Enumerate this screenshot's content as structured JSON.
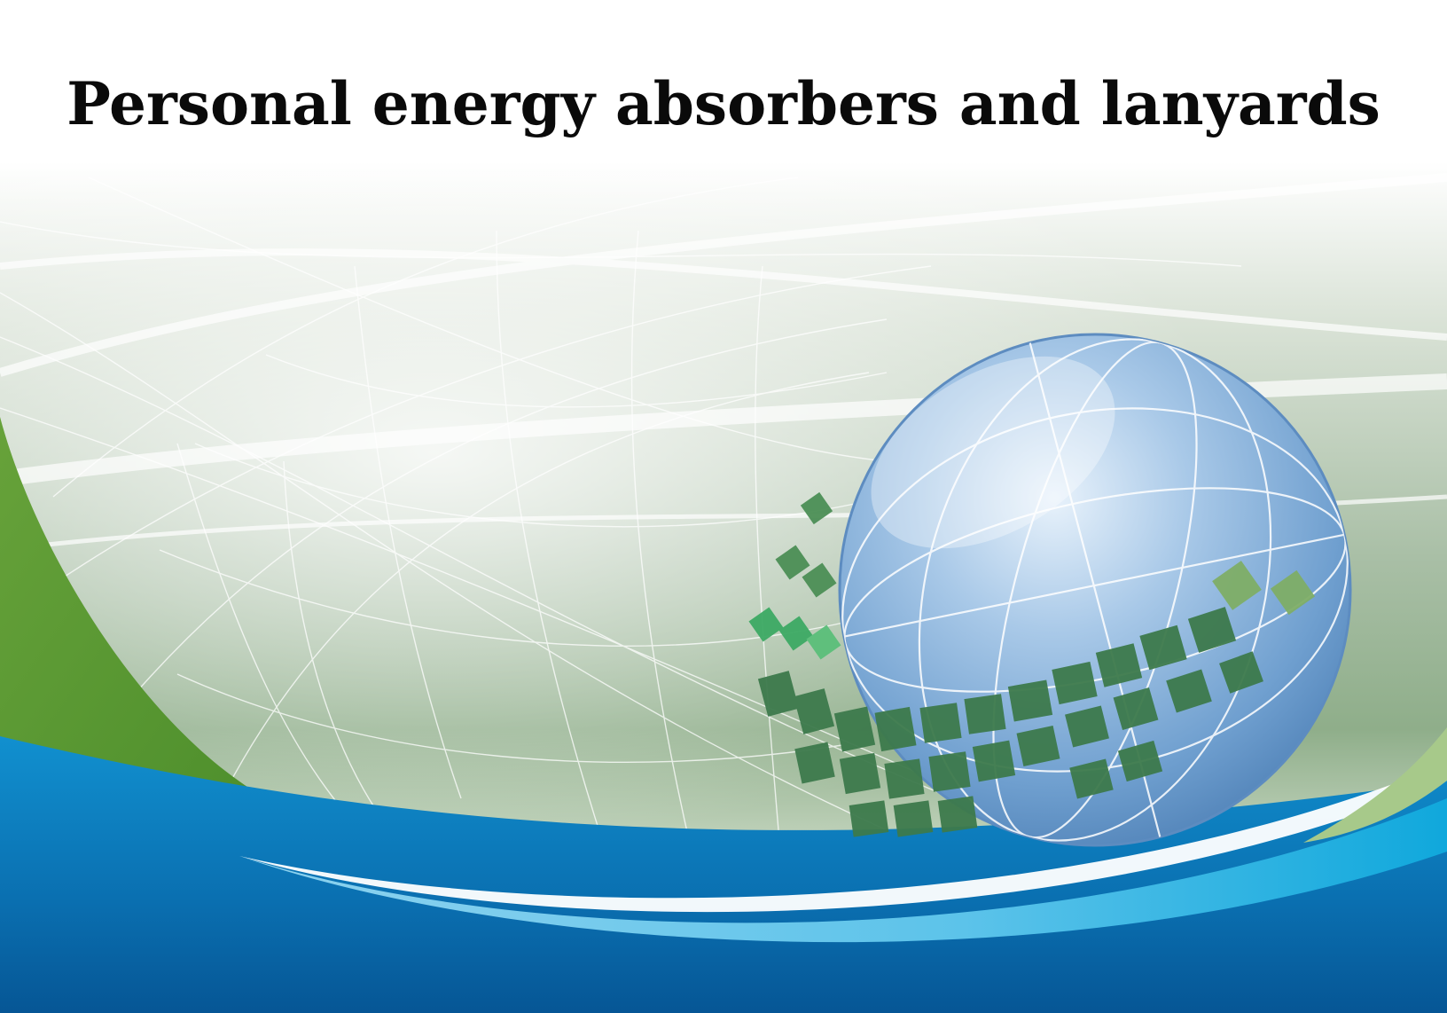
{
  "cover": {
    "title": "Personal energy absorbers and lanyards"
  },
  "artwork": {
    "globe-icon": "globe-icon",
    "mosaic-icon": "mosaic-tiles-icon",
    "colors": {
      "green": "#5e9a35",
      "blue_dark": "#0b5a95",
      "blue_mid": "#0a86c7",
      "cyan": "#7ed0ee",
      "globe": "#6f9fcf",
      "tile_green": "#3b8e5a"
    }
  }
}
